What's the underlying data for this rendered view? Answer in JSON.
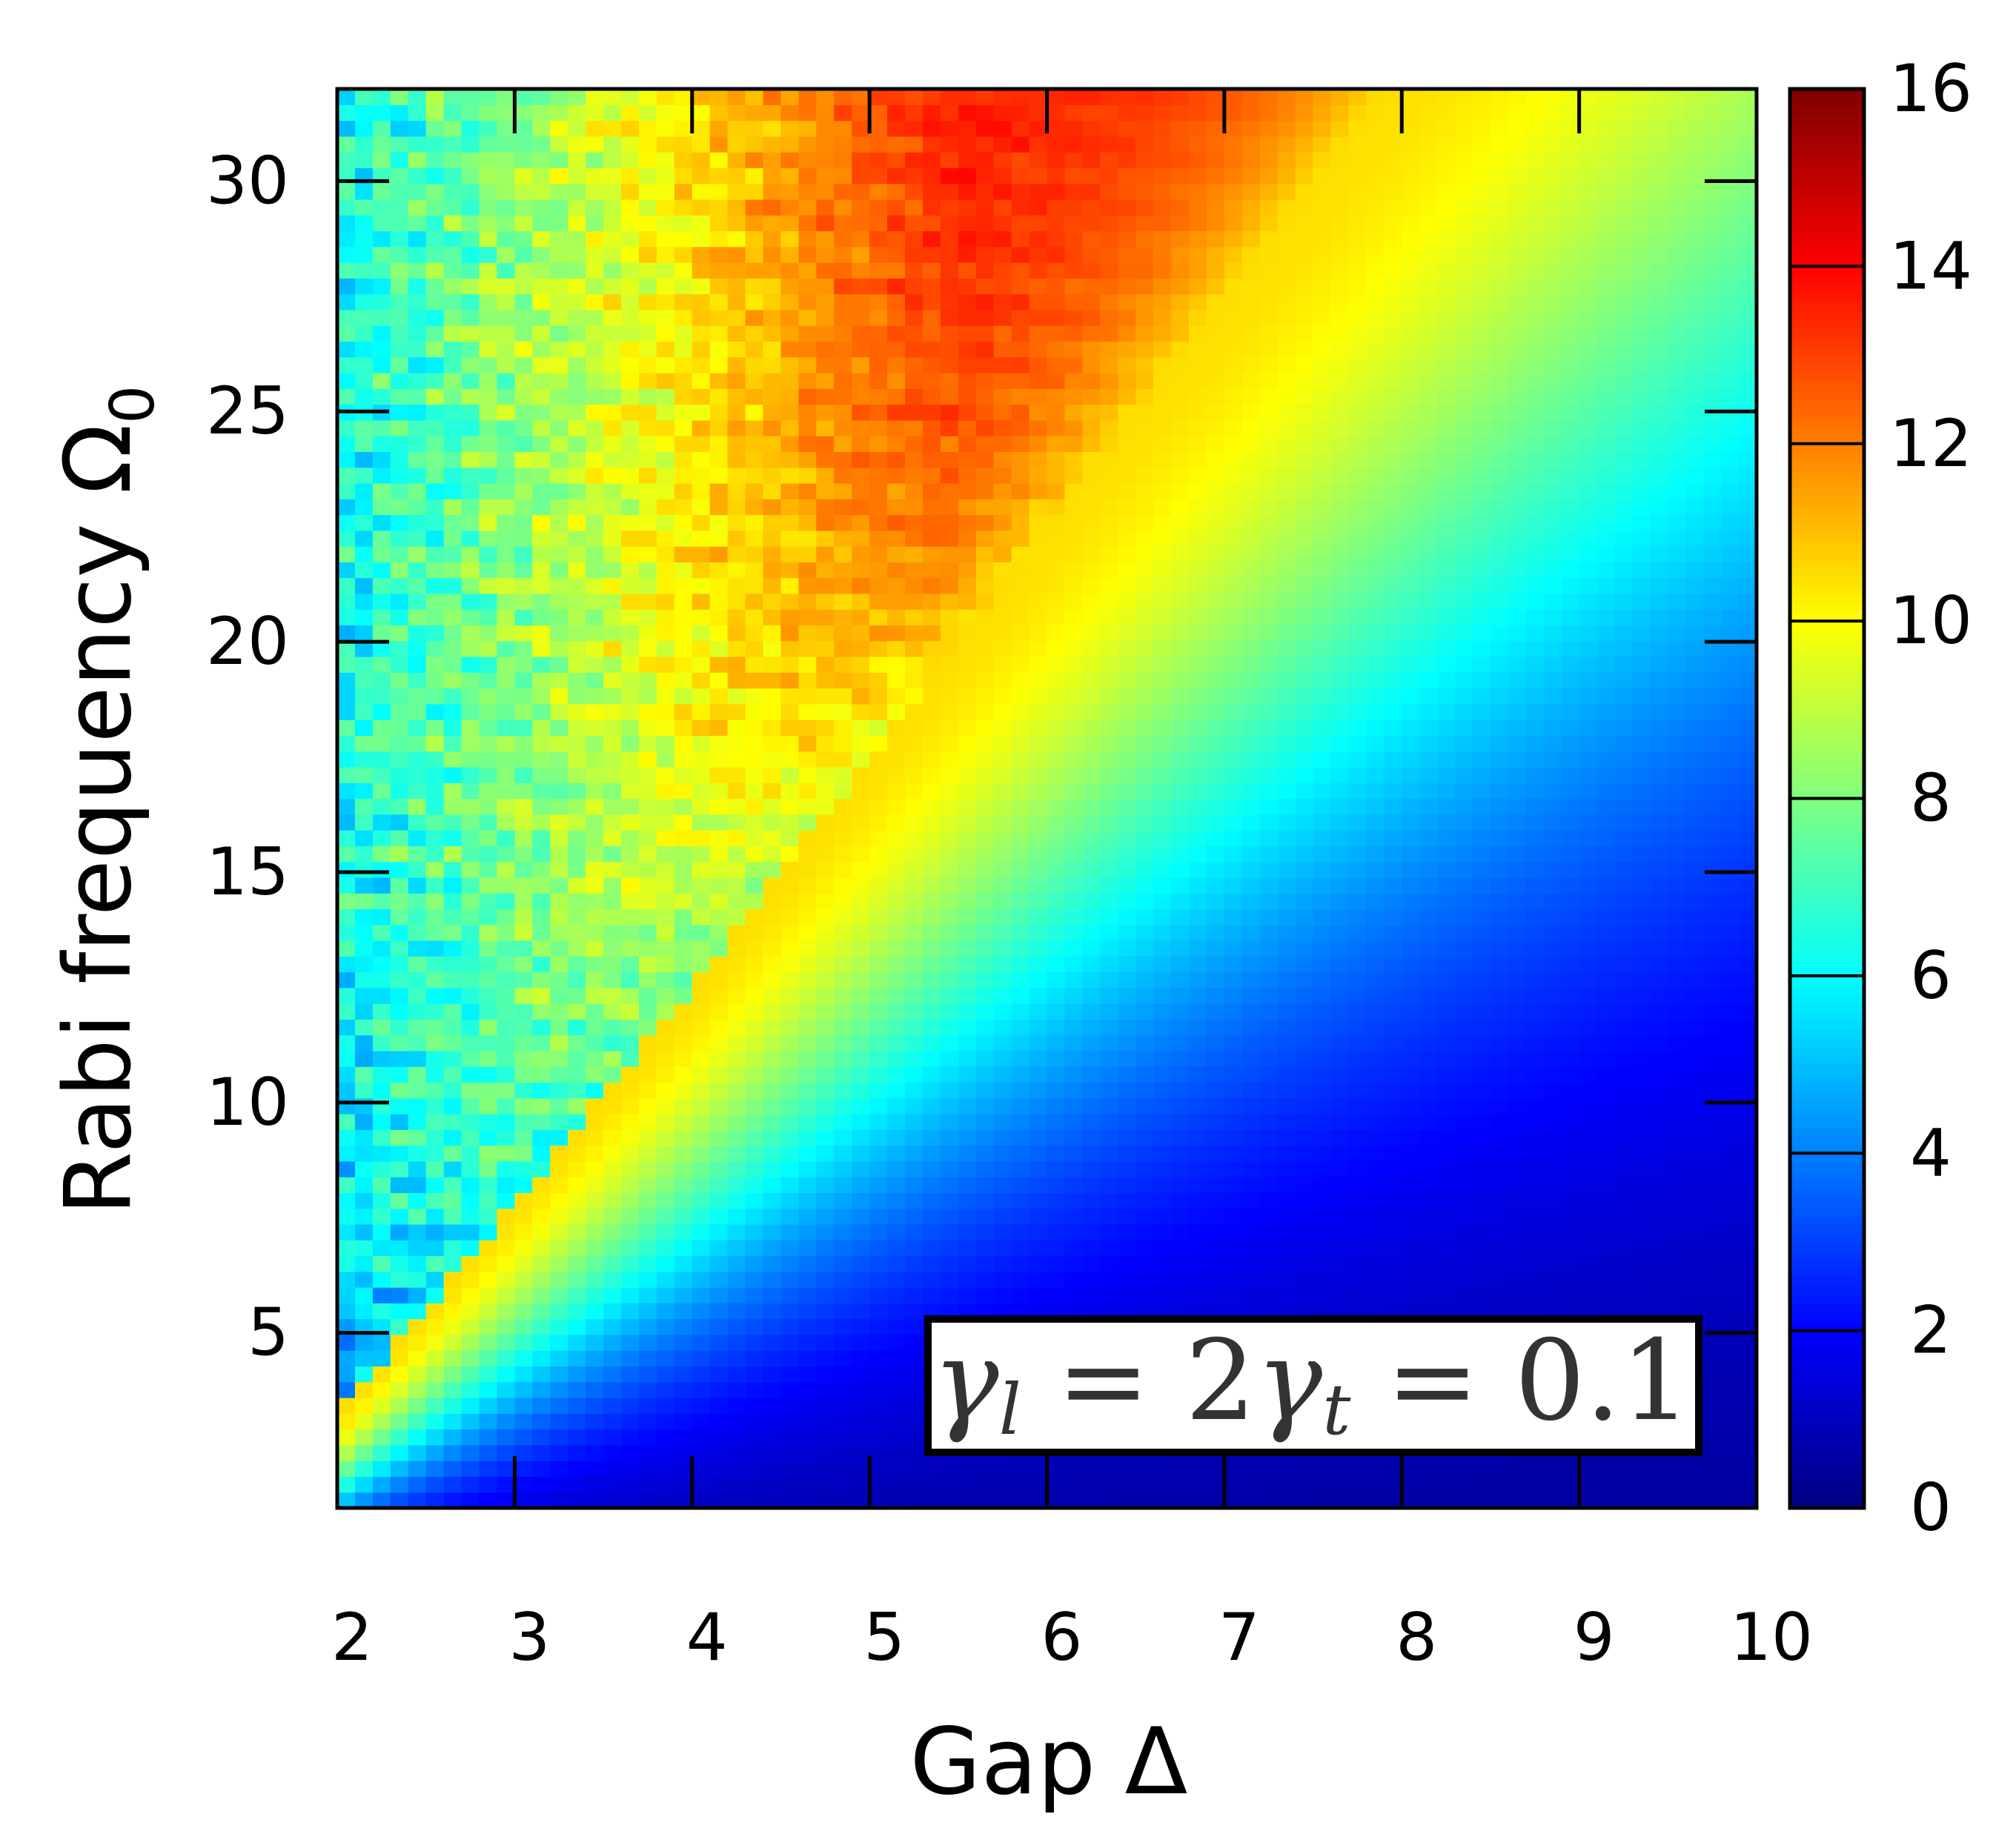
{
  "chart_data": {
    "type": "heatmap",
    "title": "",
    "xlabel": "Gap Δ",
    "ylabel": "Rabi frequency Ω",
    "ylabel_subscript": "0",
    "x_range": [
      2,
      10
    ],
    "y_range": [
      1.2,
      32
    ],
    "x_ticks": [
      2,
      3,
      4,
      5,
      6,
      7,
      8,
      9,
      10
    ],
    "y_ticks": [
      5,
      10,
      15,
      20,
      25,
      30
    ],
    "colorbar": {
      "range": [
        0,
        16
      ],
      "ticks": [
        0,
        2,
        4,
        6,
        8,
        10,
        12,
        14,
        16
      ],
      "colormap": "jet"
    },
    "annotation": {
      "gamma_l": "γ",
      "sub_l": "l",
      "eq1": " = 2",
      "gamma_t": "γ",
      "sub_t": "t",
      "eq2": " = 0.1"
    },
    "grid": false,
    "resolution": {
      "nx": 80,
      "ny": 90
    },
    "field_description": {
      "resonance_ridge": [
        [
          2,
          3.2
        ],
        [
          4,
          12.5
        ],
        [
          6,
          22.5
        ],
        [
          7.5,
          30
        ]
      ],
      "ridge_peak_value": 10.5,
      "max_value": 14.5,
      "lower_right_value": 0.3,
      "left_edge_value": 4.5
    },
    "colors": {
      "jet_stops": [
        "#000030",
        "#00008f",
        "#0000ff",
        "#0080ff",
        "#00ffff",
        "#80ff80",
        "#ffff00",
        "#ff8000",
        "#ff0000",
        "#800000"
      ]
    }
  }
}
